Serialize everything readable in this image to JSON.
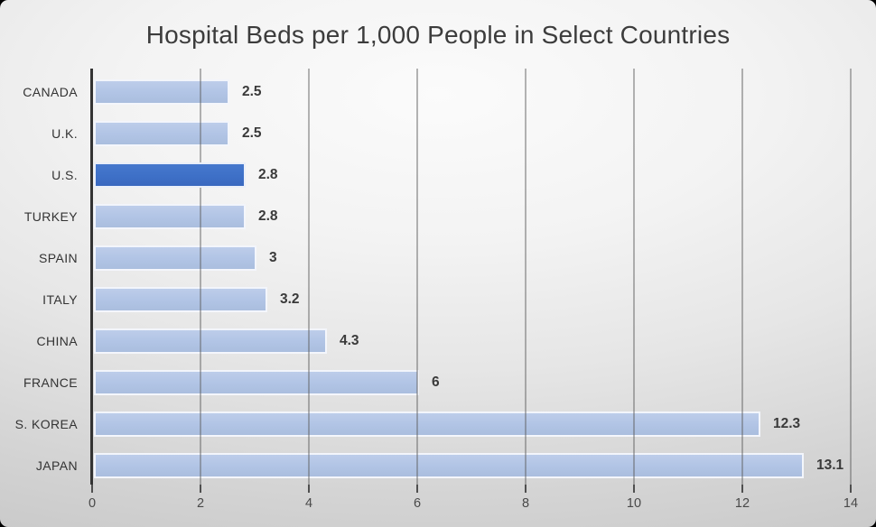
{
  "title": "Hospital Beds per 1,000 People in Select Countries",
  "chart_data": {
    "type": "bar",
    "orientation": "horizontal",
    "title": "Hospital Beds per 1,000 People in Select Countries",
    "categories": [
      "CANADA",
      "U.K.",
      "U.S.",
      "TURKEY",
      "SPAIN",
      "ITALY",
      "CHINA",
      "FRANCE",
      "S. KOREA",
      "JAPAN"
    ],
    "values": [
      2.5,
      2.5,
      2.8,
      2.8,
      3,
      3.2,
      4.3,
      6,
      12.3,
      13.1
    ],
    "value_labels": [
      "2.5",
      "2.5",
      "2.8",
      "2.8",
      "3",
      "3.2",
      "4.3",
      "6",
      "12.3",
      "13.1"
    ],
    "highlighted_category": "U.S.",
    "xlabel": "",
    "ylabel": "",
    "xlim": [
      0,
      14
    ],
    "x_ticks": [
      0,
      2,
      4,
      6,
      8,
      10,
      12,
      14
    ],
    "grid": "vertical-gridlines-on",
    "legend": "none",
    "colors": {
      "bar_fill": "#b1c4e5",
      "bar_border": "#f5f8fc",
      "highlight_fill": "#3e70c7",
      "gridline": "#5c5c5c",
      "axis_line": "#333333",
      "label_text": "#3a3a3a",
      "tick_text": "#494949",
      "title_text": "#3c3c3c"
    }
  }
}
